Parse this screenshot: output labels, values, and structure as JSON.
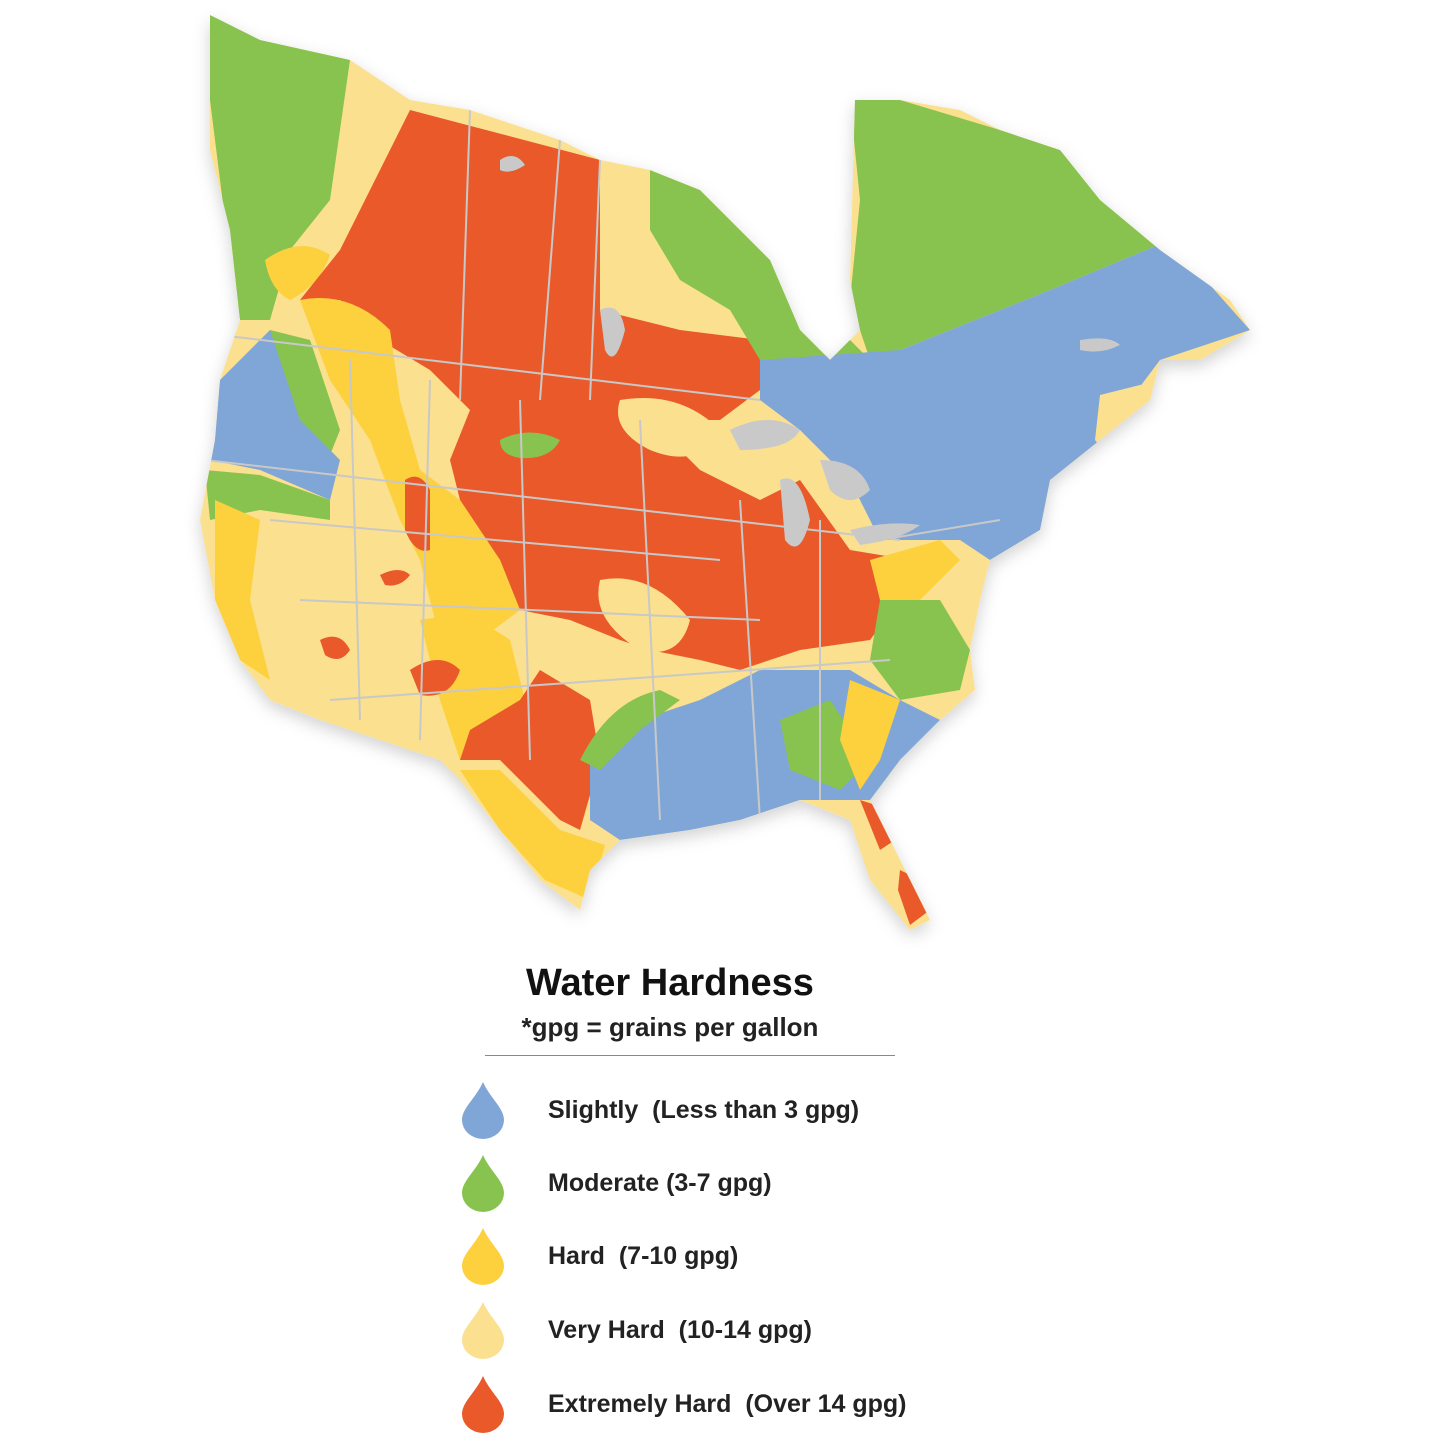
{
  "legend": {
    "title": "Water Hardness",
    "subtitle": "*gpg = grains per gallon",
    "items": [
      {
        "key": "slightly",
        "label": "Slightly  (Less than 3 gpg)",
        "color": "#7fa6d6"
      },
      {
        "key": "moderate",
        "label": "Moderate (3-7 gpg)",
        "color": "#88c34f"
      },
      {
        "key": "hard",
        "label": "Hard  (7-10 gpg)",
        "color": "#fdd03e"
      },
      {
        "key": "very_hard",
        "label": "Very Hard  (10-14 gpg)",
        "color": "#fbe08f"
      },
      {
        "key": "extremely_hard",
        "label": "Extremely Hard  (Over 14 gpg)",
        "color": "#e9592a"
      }
    ]
  },
  "map": {
    "water_color": "#c9c9c9",
    "border_color": "#c8c8c8"
  }
}
